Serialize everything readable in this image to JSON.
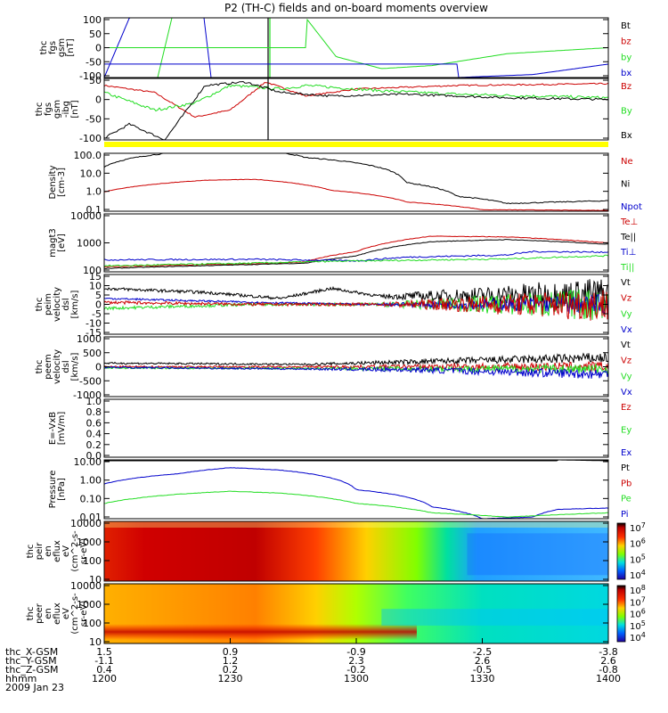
{
  "title": "P2 (TH-C) fields and on-board moments overview",
  "colors": {
    "black": "#000000",
    "red": "#cc0000",
    "green": "#22dd22",
    "blue": "#0000cc",
    "yellow": "#ffff00"
  },
  "chart_data": [
    {
      "type": "line",
      "panel": "fgs",
      "ylabel_lines": [
        "thc",
        "fgs",
        "gsm",
        "[nT]"
      ],
      "ylim": [
        -100,
        100
      ],
      "yticks": [
        "100",
        "50",
        "0",
        "-50",
        "-100"
      ],
      "legend": [
        {
          "name": "Bt",
          "color": "black"
        },
        {
          "name": "bz",
          "color": "red"
        },
        {
          "name": "by",
          "color": "green"
        },
        {
          "name": "bx",
          "color": "blue"
        }
      ]
    },
    {
      "type": "line",
      "panel": "fgs_dc",
      "ylabel_lines": [
        "thc",
        "fgs",
        "gsm",
        "-ibg",
        "[nT]"
      ],
      "ylim": [
        -125,
        50
      ],
      "yticks": [
        "50",
        "0",
        "-50",
        "-100"
      ],
      "legend": [
        {
          "name": "Bz",
          "color": "red"
        },
        {
          "name": "By",
          "color": "green"
        },
        {
          "name": "Bx",
          "color": "black"
        }
      ]
    },
    {
      "type": "bar",
      "panel": "mode",
      "note": "yellow mode bar"
    },
    {
      "type": "line",
      "panel": "density",
      "ylabel_lines": [
        "Density",
        "[cm-3]"
      ],
      "log": true,
      "ylim": [
        0.1,
        100
      ],
      "yticks": [
        "100.0",
        "10.0",
        "1.0",
        "0.1"
      ],
      "legend": [
        {
          "name": "Ne",
          "color": "red"
        },
        {
          "name": "Ni",
          "color": "black"
        },
        {
          "name": "Npot",
          "color": "blue"
        }
      ]
    },
    {
      "type": "line",
      "panel": "temperature",
      "ylabel_lines": [
        "magt3",
        "[eV]"
      ],
      "log": true,
      "ylim": [
        100,
        10000
      ],
      "yticks": [
        "10000",
        "1000",
        "100"
      ],
      "legend": [
        {
          "name": "Te⊥",
          "color": "red"
        },
        {
          "name": "Te||",
          "color": "black"
        },
        {
          "name": "Ti⊥",
          "color": "blue"
        },
        {
          "name": "Ti||",
          "color": "green"
        }
      ]
    },
    {
      "type": "line",
      "panel": "peim",
      "ylabel_lines": [
        "thc",
        "peim",
        "velocity",
        "dsl",
        "[km/s]"
      ],
      "ylim": [
        -15,
        15
      ],
      "yticks": [
        "15",
        "10",
        "5",
        "0",
        "-5",
        "-10",
        "-15"
      ],
      "legend": [
        {
          "name": "Vt",
          "color": "black"
        },
        {
          "name": "Vz",
          "color": "red"
        },
        {
          "name": "Vy",
          "color": "green"
        },
        {
          "name": "Vx",
          "color": "blue"
        }
      ]
    },
    {
      "type": "line",
      "panel": "peem",
      "ylabel_lines": [
        "thc",
        "peem",
        "velocity",
        "dsl",
        "[km/s]"
      ],
      "ylim": [
        -1000,
        1000
      ],
      "yticks": [
        "1000",
        "500",
        "0",
        "-500",
        "-1000"
      ],
      "legend": [
        {
          "name": "Vt",
          "color": "black"
        },
        {
          "name": "Vz",
          "color": "red"
        },
        {
          "name": "Vy",
          "color": "green"
        },
        {
          "name": "Vx",
          "color": "blue"
        }
      ]
    },
    {
      "type": "line",
      "panel": "efield",
      "ylabel_lines": [
        "E=-VxB",
        "[mV/m]"
      ],
      "ylim": [
        0,
        1
      ],
      "yticks": [
        "1.0",
        "0.8",
        "0.6",
        "0.4",
        "0.2",
        "0.0"
      ],
      "legend": [
        {
          "name": "Ez",
          "color": "red"
        },
        {
          "name": "Ey",
          "color": "green"
        },
        {
          "name": "Ex",
          "color": "blue"
        }
      ]
    },
    {
      "type": "line",
      "panel": "pressure",
      "ylabel_lines": [
        "Pressure",
        "[nPa]"
      ],
      "log": true,
      "ylim": [
        0.01,
        10
      ],
      "yticks": [
        "10.00",
        "1.00",
        "0.10",
        "0.01"
      ],
      "legend": [
        {
          "name": "Pt",
          "color": "black"
        },
        {
          "name": "Pb",
          "color": "red"
        },
        {
          "name": "Pe",
          "color": "green"
        },
        {
          "name": "Pi",
          "color": "blue"
        }
      ]
    },
    {
      "type": "heatmap",
      "panel": "peir",
      "ylabel_lines": [
        "thc",
        "peir",
        "en",
        "eflux",
        "eV",
        "(cm^2-s-",
        "sr-eV)"
      ],
      "yticks": [
        "10000",
        "1000",
        "100",
        "10"
      ],
      "colorbar_labels": [
        "10^7",
        "10^6",
        "10^5",
        "10^4"
      ]
    },
    {
      "type": "heatmap",
      "panel": "peer",
      "ylabel_lines": [
        "thc",
        "peer",
        "en",
        "eflux",
        "eV",
        "(cm^2-s-",
        "sr-eV)"
      ],
      "yticks": [
        "10000",
        "1000",
        "100",
        "10"
      ],
      "colorbar_labels": [
        "10^8",
        "10^7",
        "10^6",
        "10^5",
        "10^4"
      ]
    }
  ],
  "axis": {
    "labels": [
      "thc_X-GSM",
      "thc_Y-GSM",
      "thc_Z-GSM",
      "hhmm",
      "2009 Jan 23"
    ],
    "columns": [
      {
        "x": "1.5",
        "y": "-1.1",
        "z": "0.4",
        "hhmm": "1200"
      },
      {
        "x": "0.9",
        "y": "1.2",
        "z": "0.2",
        "hhmm": "1230"
      },
      {
        "x": "-0.9",
        "y": "2.3",
        "z": "-0.2",
        "hhmm": "1300"
      },
      {
        "x": "-2.5",
        "y": "2.6",
        "z": "-0.5",
        "hhmm": "1330"
      },
      {
        "x": "-3.8",
        "y": "2.6",
        "z": "-0.8",
        "hhmm": "1400"
      }
    ]
  }
}
